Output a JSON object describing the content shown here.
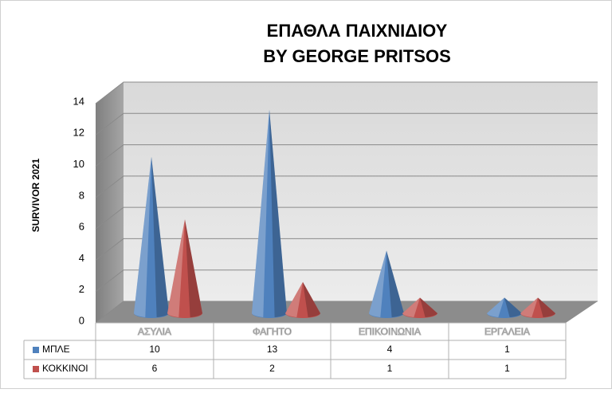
{
  "chart_data": {
    "type": "cone",
    "title": [
      "ΕΠΑΘΛΑ ΠΑΙΧΝΙΔΙΟΥ",
      "BY GEORGE PRITSOS"
    ],
    "y_label": "SURVIVOR 2021",
    "categories": [
      "ΑΣΥΛΙΑ",
      "ΦΑΓΗΤΟ",
      "ΕΠΙΚΟΙΝΩΝΙΑ",
      "ΕΡΓΑΛΕΙΑ"
    ],
    "series": [
      {
        "name": "ΜΠΛΕ",
        "color": "#4f81bd",
        "values": [
          10,
          13,
          4,
          1
        ]
      },
      {
        "name": "ΚΟΚΚΙΝΟΙ",
        "color": "#c0504d",
        "values": [
          6,
          2,
          1,
          1
        ]
      }
    ],
    "ylim": [
      0,
      14
    ],
    "yticks": [
      0,
      2,
      4,
      6,
      8,
      10,
      12,
      14
    ],
    "grid": true
  }
}
